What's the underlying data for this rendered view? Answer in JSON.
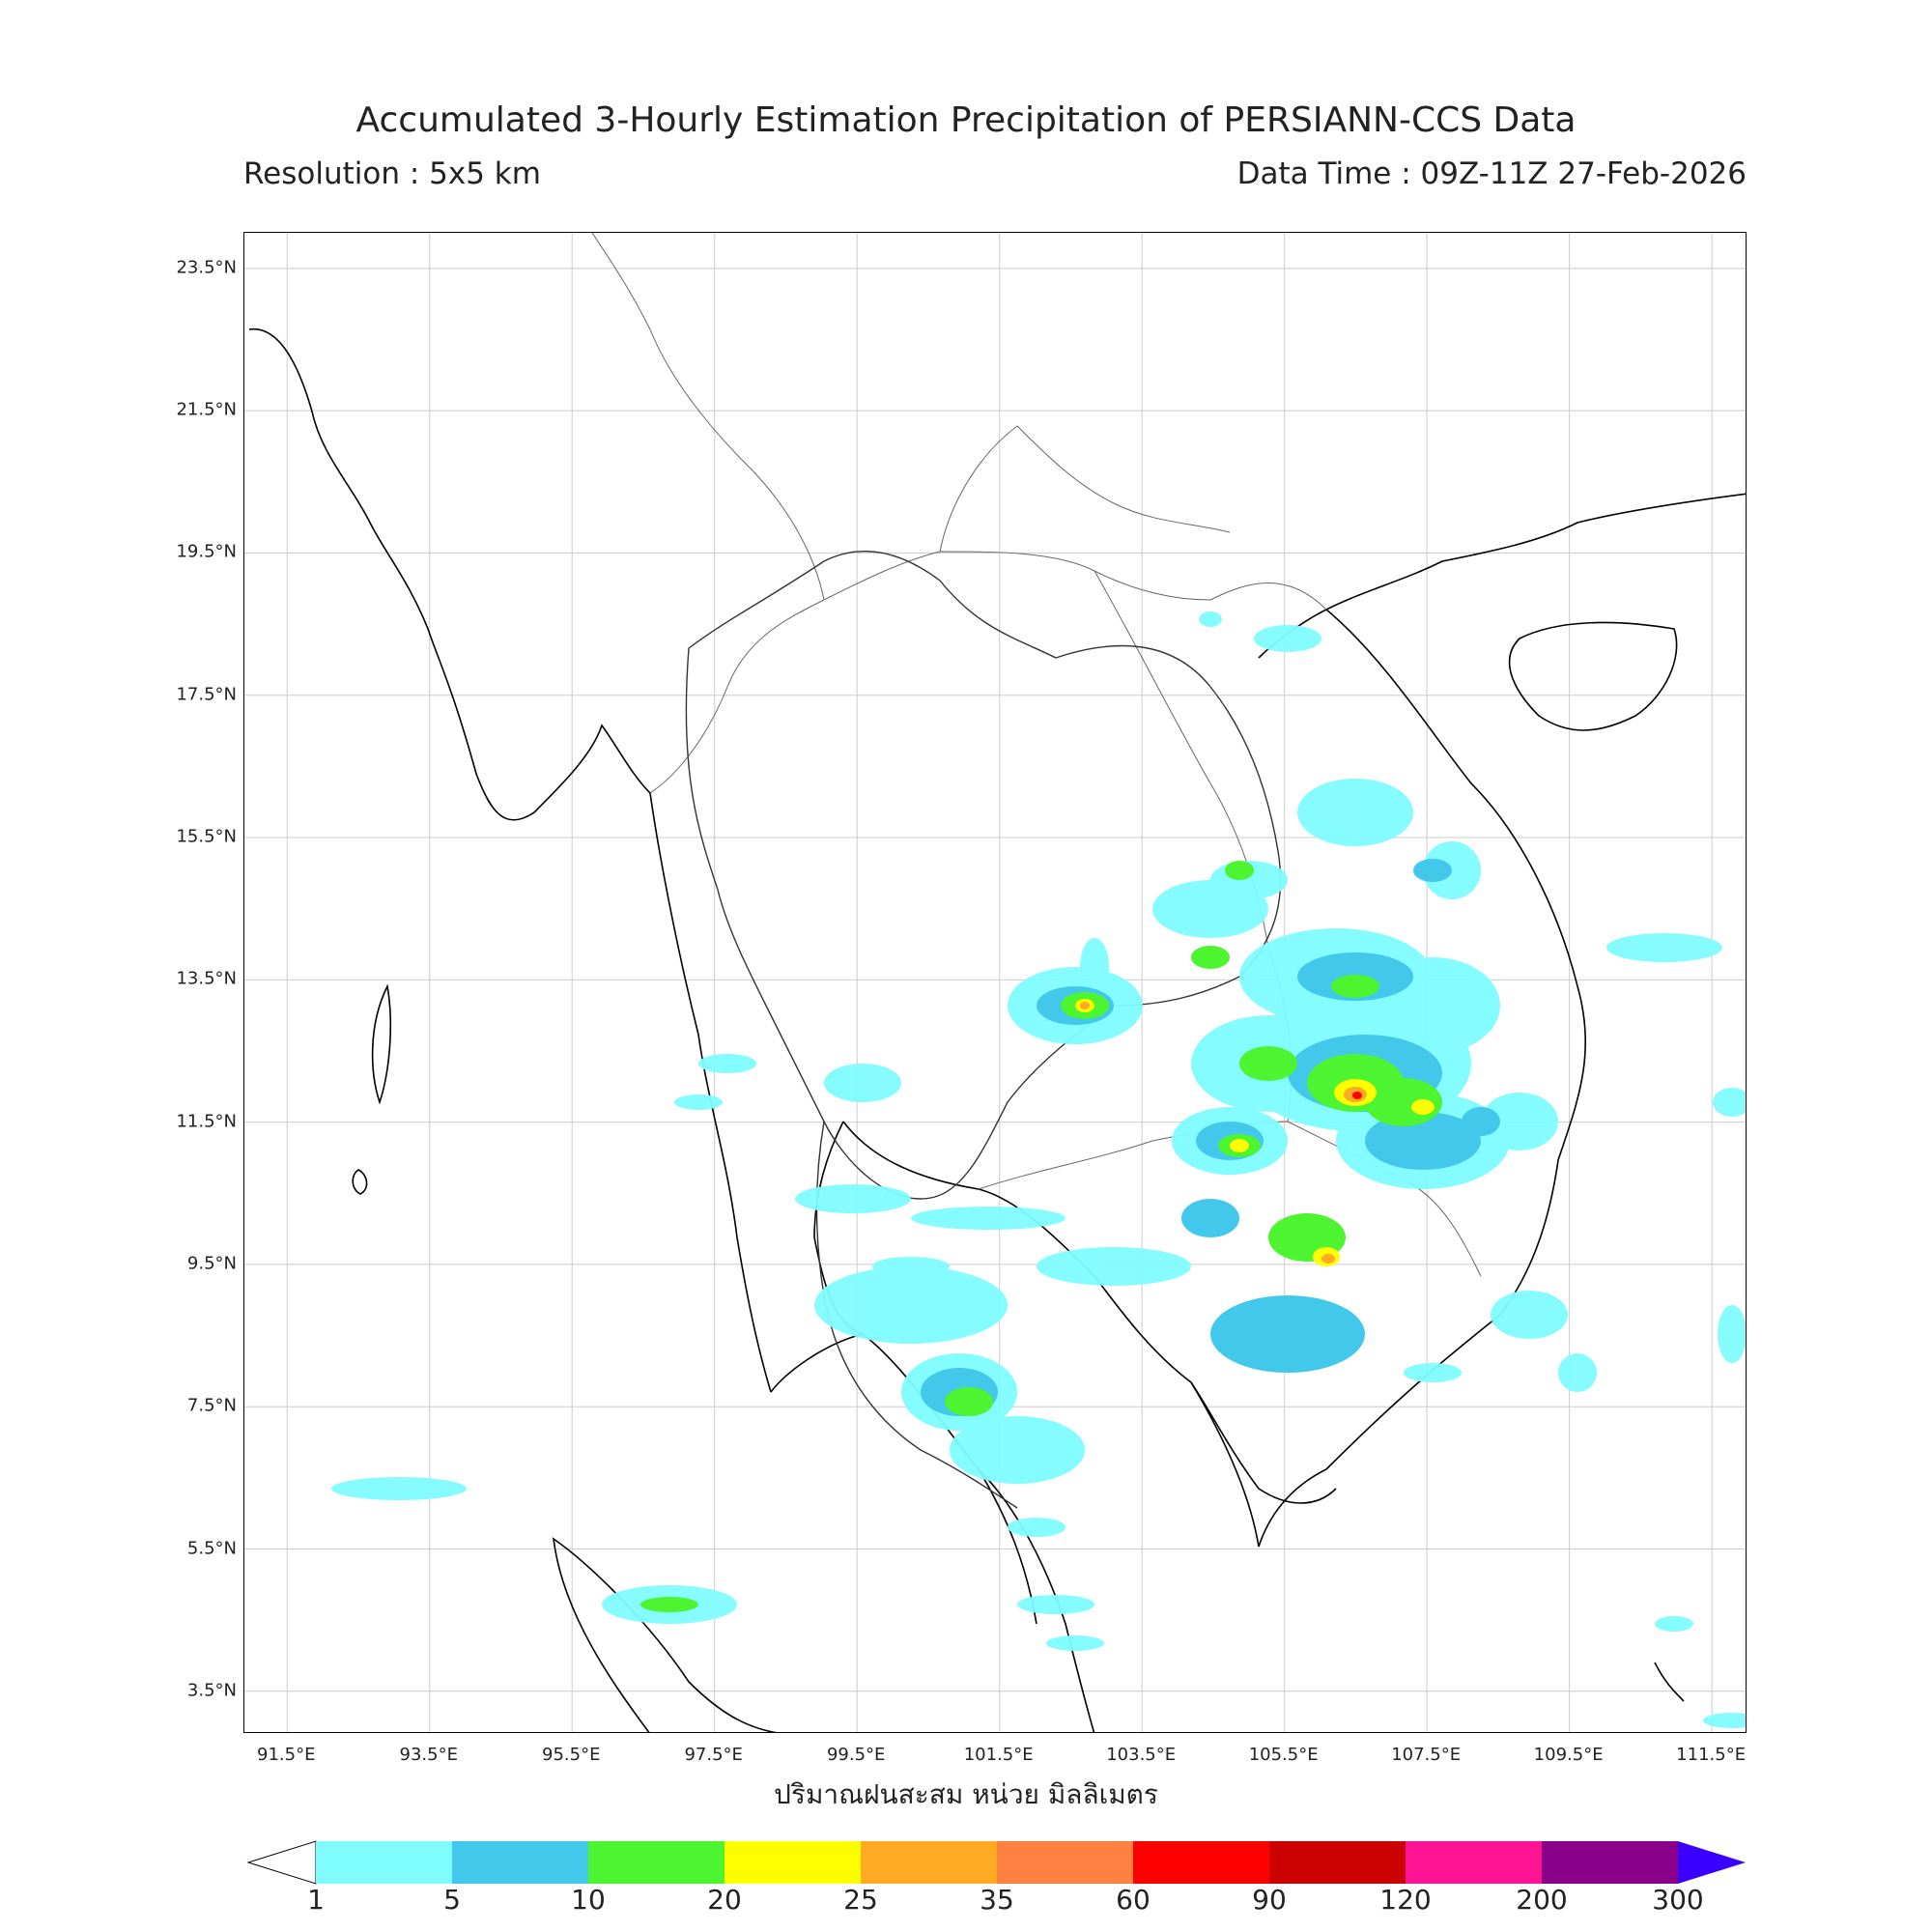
{
  "header": {
    "title": "Accumulated 3-Hourly Estimation Precipitation of PERSIANN-CCS Data",
    "resolution": "Resolution : 5x5 km",
    "data_time": "Data Time : 09Z-11Z 27-Feb-2026"
  },
  "map": {
    "lat_ticks": [
      "23.5°N",
      "21.5°N",
      "19.5°N",
      "17.5°N",
      "15.5°N",
      "13.5°N",
      "11.5°N",
      "9.5°N",
      "7.5°N",
      "5.5°N",
      "3.5°N"
    ],
    "lon_ticks": [
      "91.5°E",
      "93.5°E",
      "95.5°E",
      "97.5°E",
      "99.5°E",
      "101.5°E",
      "103.5°E",
      "105.5°E",
      "107.5°E",
      "109.5°E",
      "111.5°E"
    ],
    "lat_range": [
      2.9,
      24.0
    ],
    "lon_range": [
      90.9,
      112.0
    ],
    "xlabel": "ปริมาณฝนสะสม หน่วย มิลลิเมตร"
  },
  "colorbar": {
    "ticks": [
      "1",
      "5",
      "10",
      "20",
      "25",
      "35",
      "60",
      "90",
      "120",
      "200",
      "300"
    ],
    "colors": [
      "#7ffcff",
      "#41c8ea",
      "#4cf52f",
      "#ffff00",
      "#ffaa22",
      "#ff8040",
      "#ff0000",
      "#cc0000",
      "#ff1493",
      "#8b008b"
    ],
    "extend_low_color": "#ffffff",
    "extend_high_color": "#3a00ff"
  }
}
